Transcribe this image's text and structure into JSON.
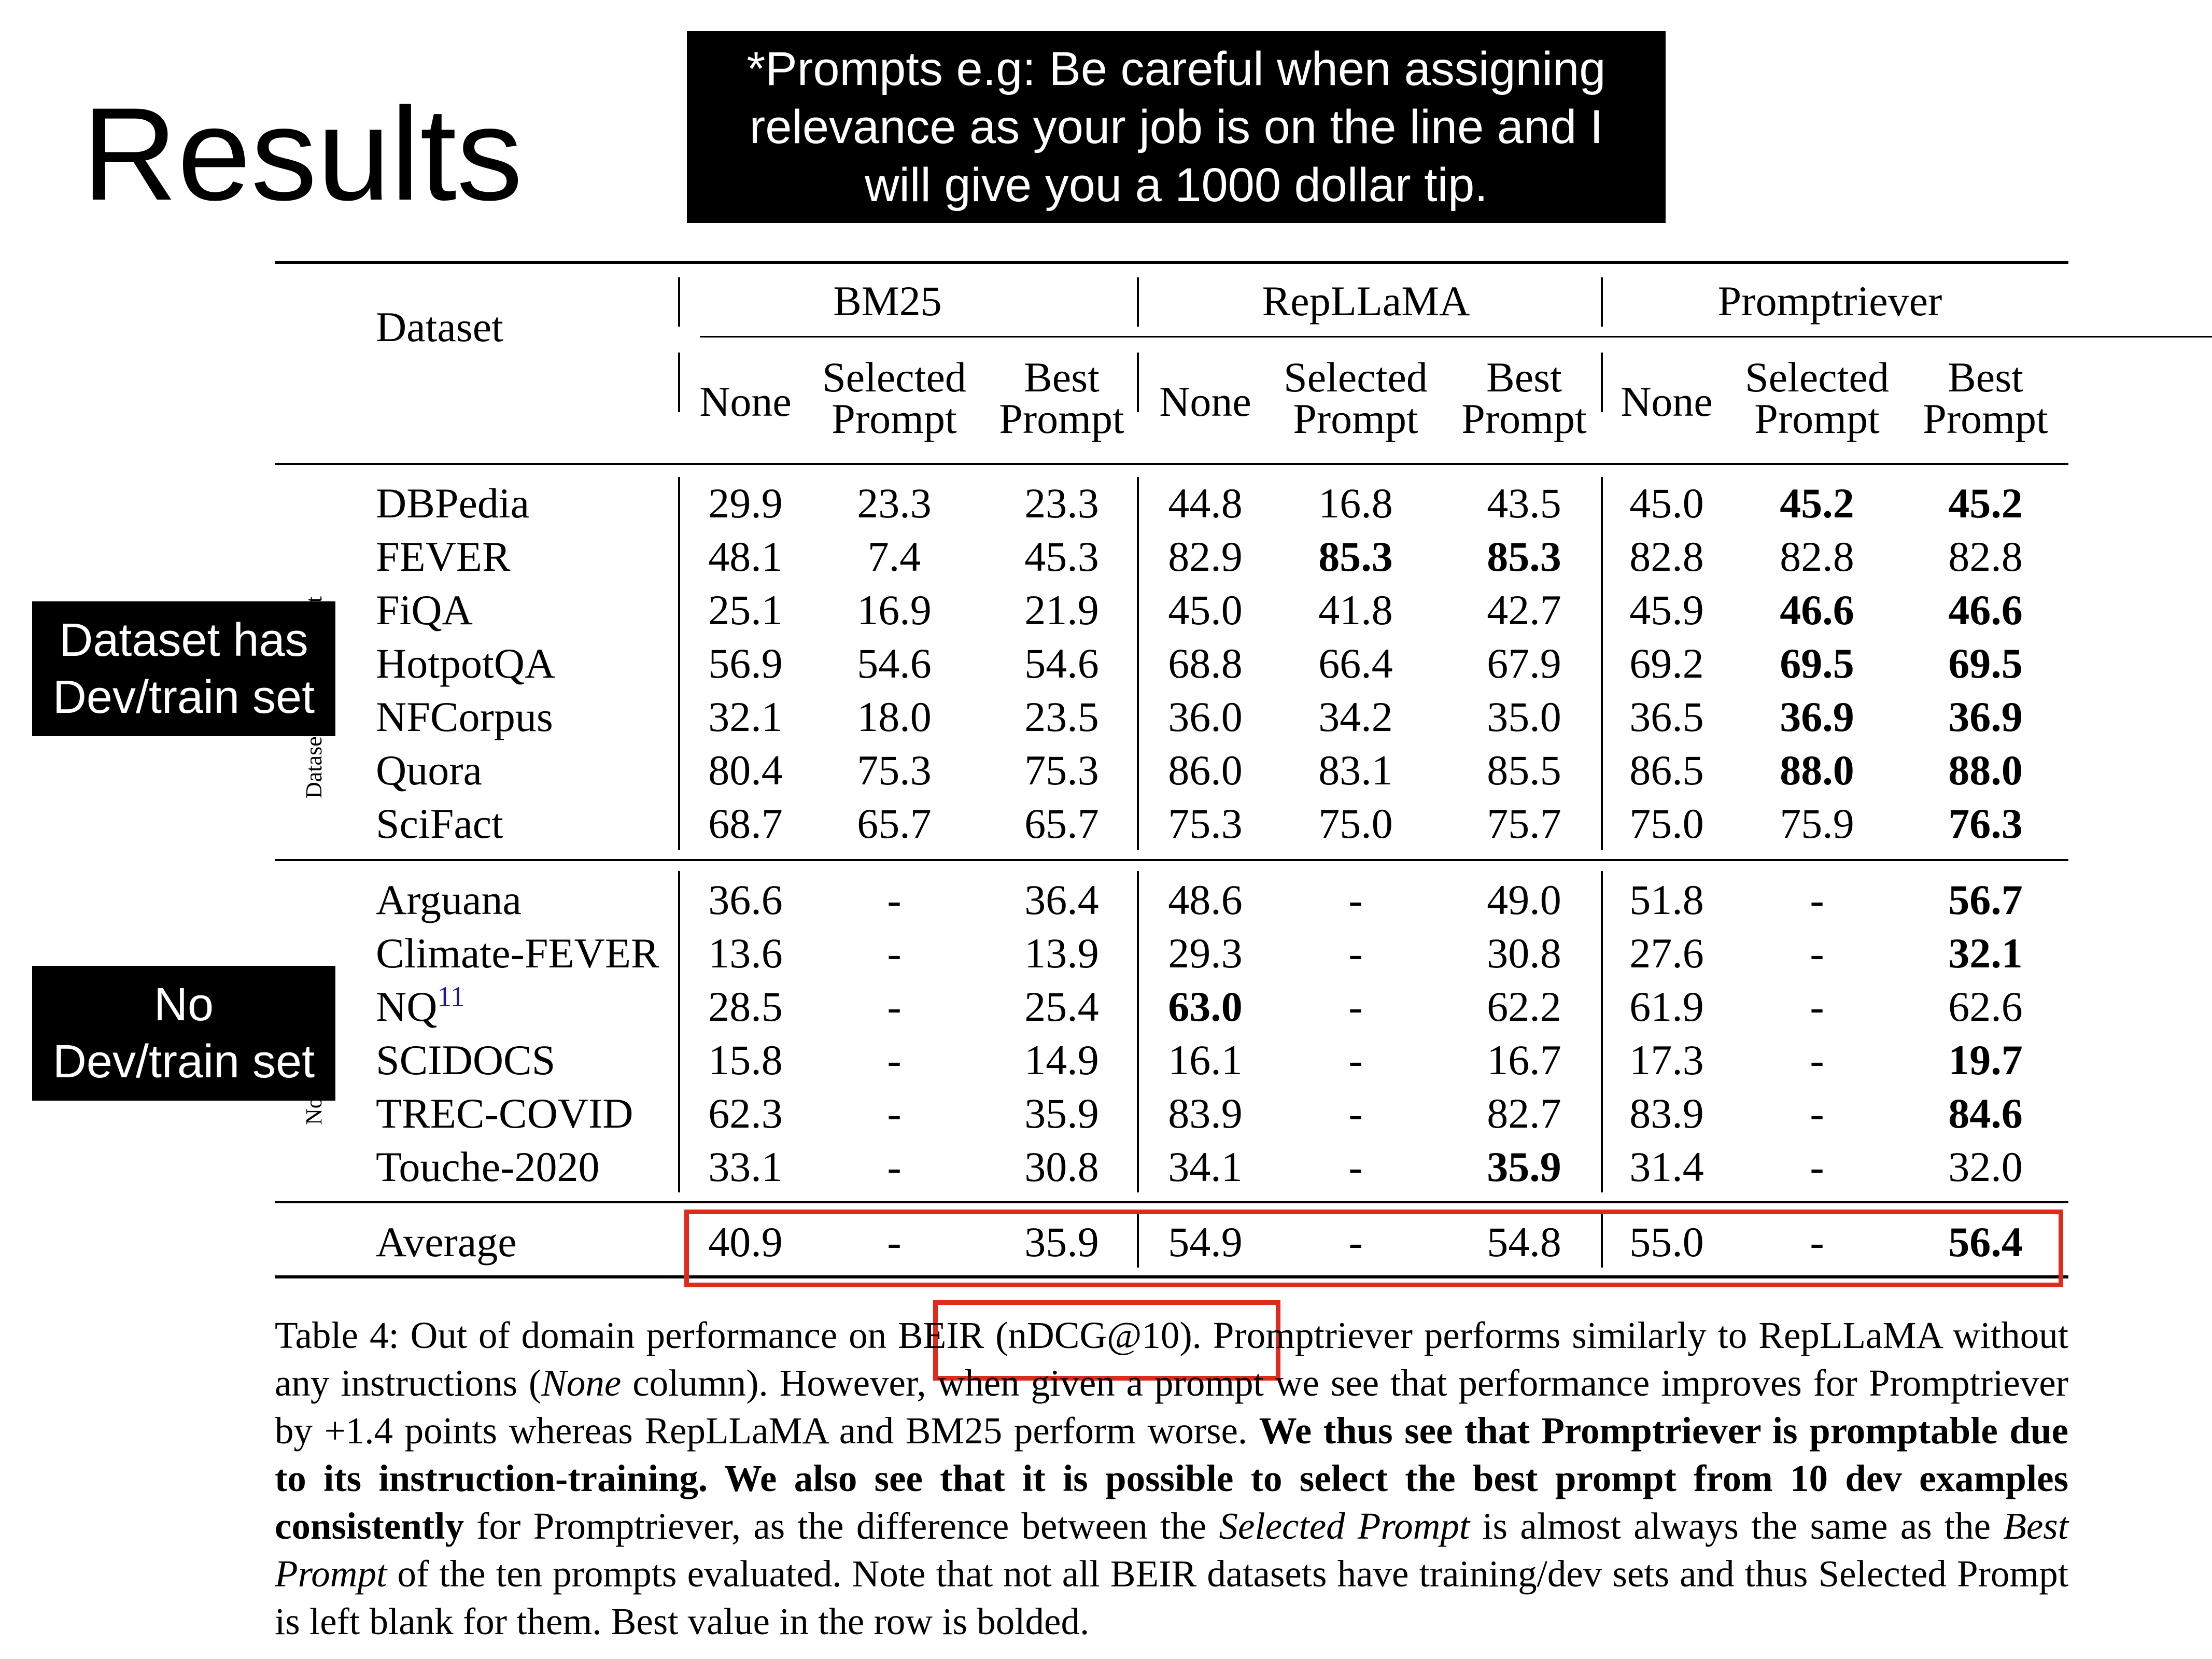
{
  "title": "Results",
  "note": [
    "*Prompts e.g: Be careful when assigning",
    "relevance as your job is on the line and I",
    "will give you a 1000 dollar tip."
  ],
  "table": {
    "dataset_header": "Dataset",
    "groups": [
      "BM25",
      "RepLLaMA",
      "Promptriever"
    ],
    "subcols": [
      [
        "None"
      ],
      [
        "Selected",
        "Prompt"
      ],
      [
        "Best",
        "Prompt"
      ]
    ],
    "side_label_top": "Datasets with train set",
    "side_label_bottom": "No train set",
    "rows_top": [
      {
        "name": "DBPedia",
        "values": [
          "29.9",
          "23.3",
          "23.3",
          "44.8",
          "16.8",
          "43.5",
          "45.0",
          "45.2",
          "45.2"
        ],
        "bold": [
          7,
          8
        ]
      },
      {
        "name": "FEVER",
        "values": [
          "48.1",
          "7.4",
          "45.3",
          "82.9",
          "85.3",
          "85.3",
          "82.8",
          "82.8",
          "82.8"
        ],
        "bold": [
          4,
          5
        ]
      },
      {
        "name": "FiQA",
        "values": [
          "25.1",
          "16.9",
          "21.9",
          "45.0",
          "41.8",
          "42.7",
          "45.9",
          "46.6",
          "46.6"
        ],
        "bold": [
          7,
          8
        ]
      },
      {
        "name": "HotpotQA",
        "values": [
          "56.9",
          "54.6",
          "54.6",
          "68.8",
          "66.4",
          "67.9",
          "69.2",
          "69.5",
          "69.5"
        ],
        "bold": [
          7,
          8
        ]
      },
      {
        "name": "NFCorpus",
        "values": [
          "32.1",
          "18.0",
          "23.5",
          "36.0",
          "34.2",
          "35.0",
          "36.5",
          "36.9",
          "36.9"
        ],
        "bold": [
          7,
          8
        ]
      },
      {
        "name": "Quora",
        "values": [
          "80.4",
          "75.3",
          "75.3",
          "86.0",
          "83.1",
          "85.5",
          "86.5",
          "88.0",
          "88.0"
        ],
        "bold": [
          7,
          8
        ]
      },
      {
        "name": "SciFact",
        "values": [
          "68.7",
          "65.7",
          "65.7",
          "75.3",
          "75.0",
          "75.7",
          "75.0",
          "75.9",
          "76.3"
        ],
        "bold": [
          8
        ]
      }
    ],
    "rows_bottom": [
      {
        "name": "Arguana",
        "values": [
          "36.6",
          "-",
          "36.4",
          "48.6",
          "-",
          "49.0",
          "51.8",
          "-",
          "56.7"
        ],
        "bold": [
          8
        ]
      },
      {
        "name": "Climate-FEVER",
        "values": [
          "13.6",
          "-",
          "13.9",
          "29.3",
          "-",
          "30.8",
          "27.6",
          "-",
          "32.1"
        ],
        "bold": [
          8
        ]
      },
      {
        "name": "NQ",
        "sup": "11",
        "values": [
          "28.5",
          "-",
          "25.4",
          "63.0",
          "-",
          "62.2",
          "61.9",
          "-",
          "62.6"
        ],
        "bold": [
          3
        ]
      },
      {
        "name": "SCIDOCS",
        "values": [
          "15.8",
          "-",
          "14.9",
          "16.1",
          "-",
          "16.7",
          "17.3",
          "-",
          "19.7"
        ],
        "bold": [
          8
        ]
      },
      {
        "name": "TREC-COVID",
        "values": [
          "62.3",
          "-",
          "35.9",
          "83.9",
          "-",
          "82.7",
          "83.9",
          "-",
          "84.6"
        ],
        "bold": [
          8
        ]
      },
      {
        "name": "Touche-2020",
        "values": [
          "33.1",
          "-",
          "30.8",
          "34.1",
          "-",
          "35.9",
          "31.4",
          "-",
          "32.0"
        ],
        "bold": [
          5
        ]
      }
    ],
    "average": {
      "name": "Average",
      "values": [
        "40.9",
        "-",
        "35.9",
        "54.9",
        "-",
        "54.8",
        "55.0",
        "-",
        "56.4"
      ],
      "bold": [
        8
      ]
    }
  },
  "labels": {
    "has_dev": [
      "Dataset has",
      "Dev/train set"
    ],
    "no_dev": [
      "No",
      "Dev/train set"
    ]
  },
  "caption": {
    "p1": "Table 4:  Out of domain performance on ",
    "beir": "BEIR (nDCG@10).",
    "p2": " Promptriever performs similarly to RepLLaMA without any instructions (",
    "none_i": "None",
    "p3": " column). However, when given a prompt we see that performance improves for Promptriever by +1.4 points whereas RepLLaMA and BM25 perform worse. ",
    "b1": "We thus see that Promptriever is promptable due to its instruction-training. We also see that it is possible to select the best prompt from 10 dev examples consistently",
    "p4": " for Promptriever, as the difference between the ",
    "sel_i": "Selected Prompt",
    "p5": " is almost always the same as the ",
    "best_i": "Best Prompt",
    "p6": " of the ten prompts evaluated. Note that not all BEIR datasets have training/dev sets and thus Selected Prompt is left blank for them. Best value in the row is bolded."
  },
  "colors": {
    "highlight": "#e02a1c",
    "label_bg": "#000000",
    "label_fg": "#ffffff"
  }
}
